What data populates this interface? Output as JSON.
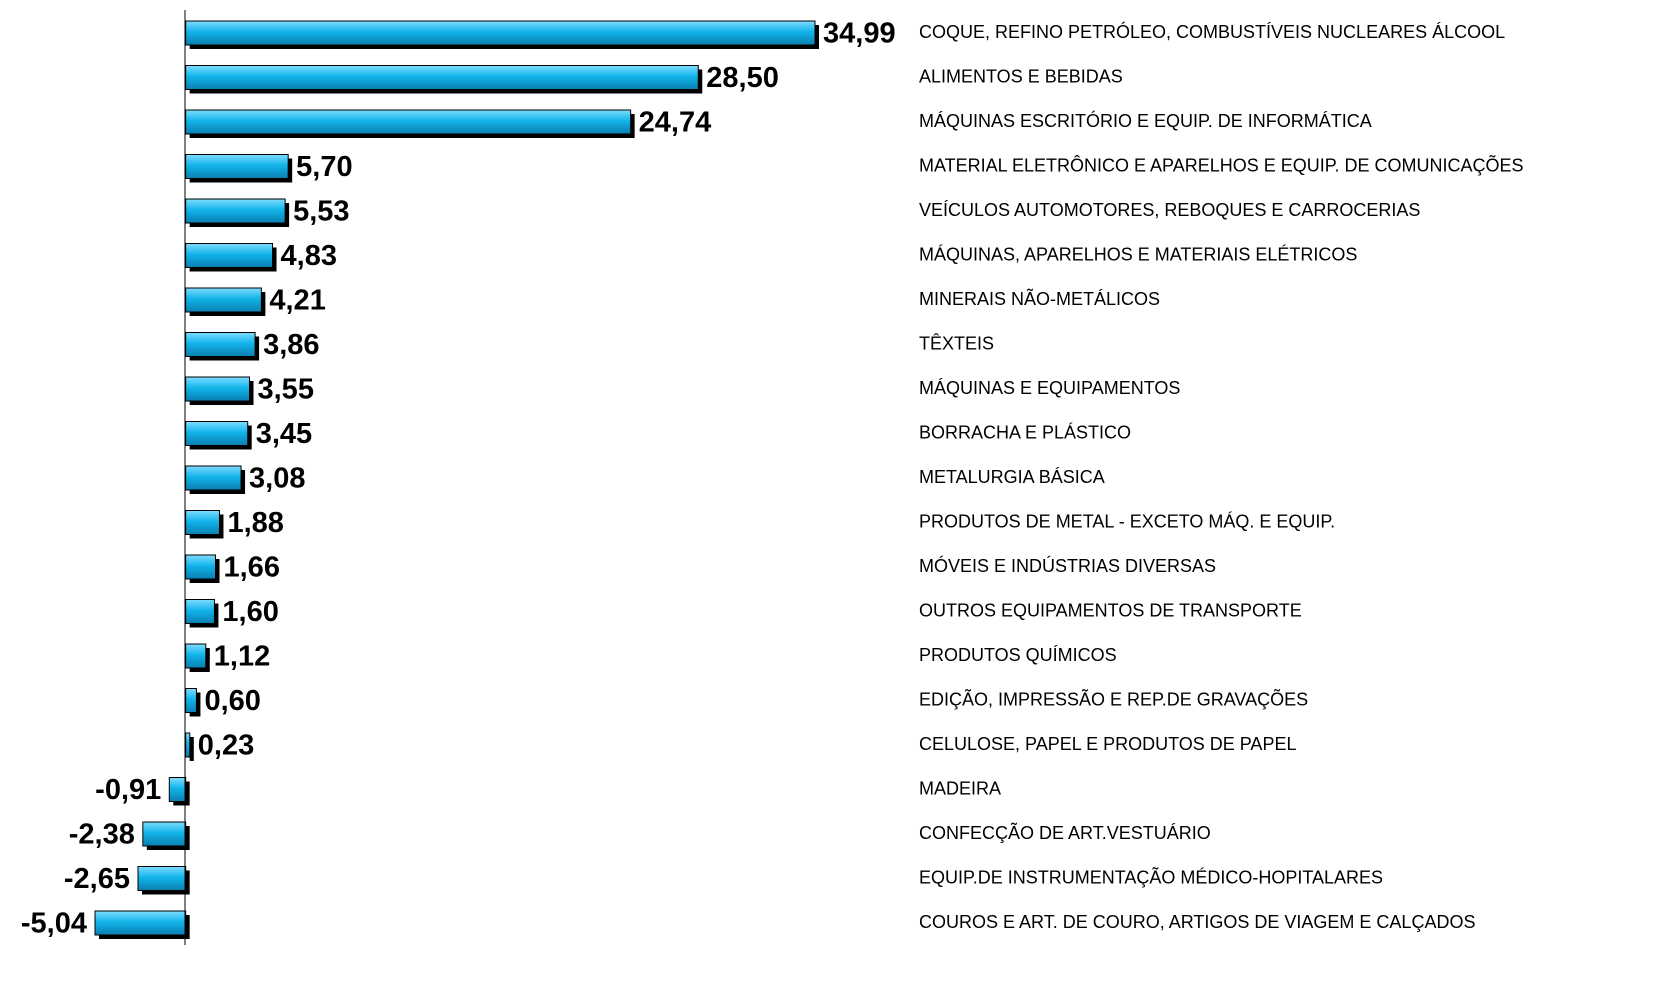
{
  "chart_data": {
    "type": "bar",
    "orientation": "horizontal",
    "color": "#12b4ea",
    "categories": [
      "COQUE, REFINO PETRÓLEO, COMBUSTÍVEIS NUCLEARES ÁLCOOL",
      "ALIMENTOS E BEBIDAS",
      "MÁQUINAS ESCRITÓRIO E EQUIP. DE INFORMÁTICA",
      "MATERIAL ELETRÔNICO E APARELHOS E EQUIP. DE COMUNICAÇÕES",
      "VEÍCULOS AUTOMOTORES, REBOQUES E CARROCERIAS",
      "MÁQUINAS, APARELHOS E MATERIAIS ELÉTRICOS",
      "MINERAIS NÃO-METÁLICOS",
      "TÊXTEIS",
      "MÁQUINAS E EQUIPAMENTOS",
      "BORRACHA E PLÁSTICO",
      "METALURGIA BÁSICA",
      "PRODUTOS DE METAL - EXCETO MÁQ. E EQUIP.",
      "MÓVEIS E INDÚSTRIAS DIVERSAS",
      "OUTROS EQUIPAMENTOS DE TRANSPORTE",
      "PRODUTOS QUÍMICOS",
      "EDIÇÃO, IMPRESSÃO E REP.DE GRAVAÇÕES",
      "CELULOSE, PAPEL E PRODUTOS DE PAPEL",
      "MADEIRA",
      "CONFECÇÃO DE ART.VESTUÁRIO",
      "EQUIP.DE INSTRUMENTAÇÃO MÉDICO-HOPITALARES",
      "COUROS E ART. DE COURO, ARTIGOS DE VIAGEM E CALÇADOS"
    ],
    "values": [
      34.99,
      28.5,
      24.74,
      5.7,
      5.53,
      4.83,
      4.21,
      3.86,
      3.55,
      3.45,
      3.08,
      1.88,
      1.66,
      1.6,
      1.12,
      0.6,
      0.23,
      -0.91,
      -2.38,
      -2.65,
      -5.04
    ],
    "value_labels": [
      "34,99",
      "28,50",
      "24,74",
      "5,70",
      "5,53",
      "4,83",
      "4,21",
      "3,86",
      "3,55",
      "3,45",
      "3,08",
      "1,88",
      "1,66",
      "1,60",
      "1,12",
      "0,60",
      "0,23",
      "-0,91",
      "-2,38",
      "-2,65",
      "-5,04"
    ]
  }
}
